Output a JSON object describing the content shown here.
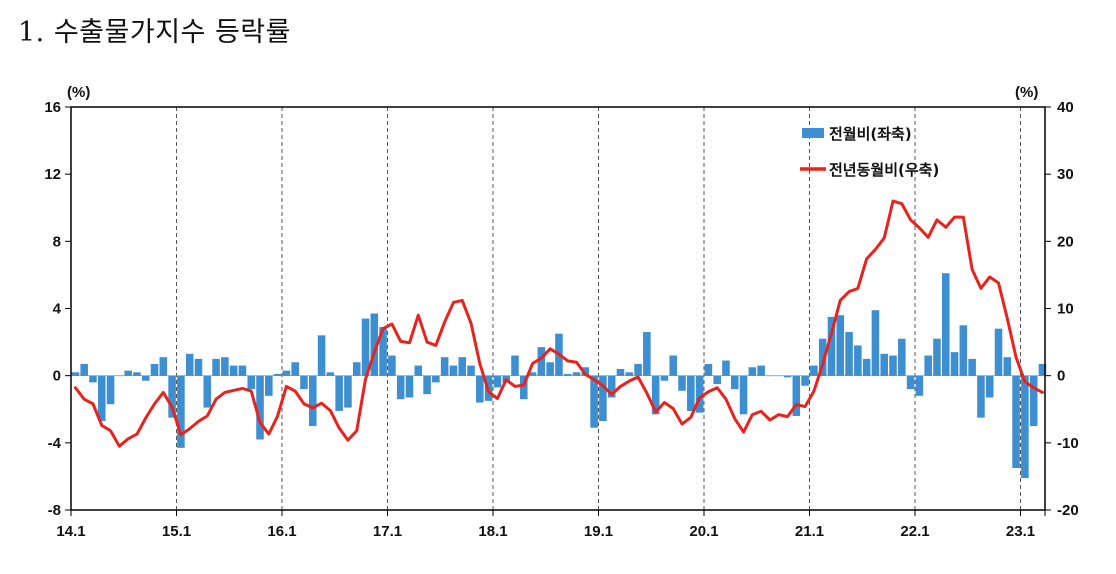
{
  "title": "1. 수출물가지수 등락률",
  "chart_data": {
    "type": "bar+line",
    "left_axis": {
      "unit_label": "(%)",
      "ylim": [
        -8,
        16
      ],
      "ticks": [
        "16",
        "12",
        "8",
        "4",
        "0",
        "-4",
        "-8"
      ]
    },
    "right_axis": {
      "unit_label": "(%)",
      "ylim": [
        -20,
        40
      ],
      "ticks": [
        "40",
        "30",
        "20",
        "10",
        "0",
        "-10",
        "-20"
      ]
    },
    "x_tick_labels": [
      "14.1",
      "15.1",
      "16.1",
      "17.1",
      "18.1",
      "19.1",
      "20.1",
      "21.1",
      "22.1",
      "23.1"
    ],
    "grid": "vertical dashed lines at each January",
    "legend_position": "top-right",
    "series": [
      {
        "name": "전월비(좌축)",
        "type": "bar",
        "axis": "left",
        "color": "#3d8fd1",
        "x_start": "2014-01",
        "values": [
          0.2,
          0.7,
          -0.4,
          -2.7,
          -1.7,
          0.0,
          0.3,
          0.2,
          -0.3,
          0.7,
          1.1,
          -2.5,
          -4.3,
          1.3,
          1.0,
          -1.9,
          1.0,
          1.1,
          0.6,
          0.6,
          -0.8,
          -3.8,
          -1.2,
          0.1,
          0.3,
          0.8,
          -0.8,
          -3.0,
          2.4,
          0.2,
          -2.1,
          -1.9,
          0.8,
          3.4,
          3.7,
          2.9,
          1.2,
          -1.4,
          -1.3,
          0.6,
          -1.1,
          -0.4,
          1.1,
          0.6,
          1.1,
          0.6,
          -1.6,
          -1.5,
          -0.7,
          -0.4,
          1.2,
          -1.4,
          0.2,
          1.7,
          0.8,
          2.5,
          0.1,
          0.2,
          0.5,
          -3.1,
          -2.7,
          -1.3,
          0.4,
          0.2,
          0.7,
          2.6,
          -2.3,
          -0.3,
          1.2,
          -0.9,
          -2.1,
          -2.2,
          0.7,
          -0.5,
          0.9,
          -0.8,
          -2.3,
          0.5,
          0.6,
          0.0,
          0.0,
          -0.1,
          -2.4,
          -0.6,
          0.6,
          2.2,
          3.5,
          3.6,
          2.6,
          1.8,
          1.0,
          3.9,
          1.3,
          1.2,
          2.2,
          -0.8,
          -1.2,
          1.2,
          2.2,
          6.1,
          1.4,
          3.0,
          1.0,
          -2.5,
          -1.3,
          2.8,
          1.1,
          -5.5,
          -6.1,
          -3.0,
          0.7
        ]
      },
      {
        "name": "전년동월비(우축)",
        "type": "line",
        "axis": "right",
        "color": "#e8231e",
        "x_start": "2014-01",
        "values": [
          -1.8,
          -3.5,
          -4.2,
          -7.4,
          -8.2,
          -10.5,
          -9.4,
          -8.7,
          -6.3,
          -4.2,
          -2.5,
          -4.7,
          -8.8,
          -7.9,
          -6.8,
          -6.0,
          -3.5,
          -2.5,
          -2.2,
          -1.9,
          -2.3,
          -7.0,
          -8.7,
          -6.0,
          -1.6,
          -2.3,
          -4.2,
          -4.8,
          -4.1,
          -5.2,
          -7.8,
          -9.6,
          -8.2,
          -0.5,
          3.5,
          7.0,
          7.7,
          5.1,
          4.9,
          9.0,
          5.0,
          4.5,
          8.0,
          10.9,
          11.2,
          7.8,
          1.8,
          -2.4,
          -3.4,
          -0.6,
          -1.6,
          -1.4,
          1.8,
          2.6,
          4.0,
          3.2,
          2.2,
          2.0,
          0.2,
          -0.6,
          -1.5,
          -2.8,
          -1.6,
          -0.8,
          -0.2,
          -2.6,
          -5.4,
          -4.0,
          -4.9,
          -7.2,
          -6.2,
          -3.3,
          -2.4,
          -1.8,
          -3.5,
          -6.4,
          -8.4,
          -5.8,
          -5.3,
          -6.6,
          -5.8,
          -6.1,
          -4.3,
          -4.6,
          -2.3,
          1.7,
          6.3,
          11.2,
          12.5,
          13.0,
          17.4,
          18.8,
          20.5,
          26.0,
          25.6,
          23.2,
          22.0,
          20.6,
          23.2,
          22.1,
          23.6,
          23.6,
          15.8,
          13.0,
          14.7,
          13.8,
          8.5,
          2.7,
          -0.9,
          -1.8,
          -2.5
        ]
      }
    ]
  }
}
